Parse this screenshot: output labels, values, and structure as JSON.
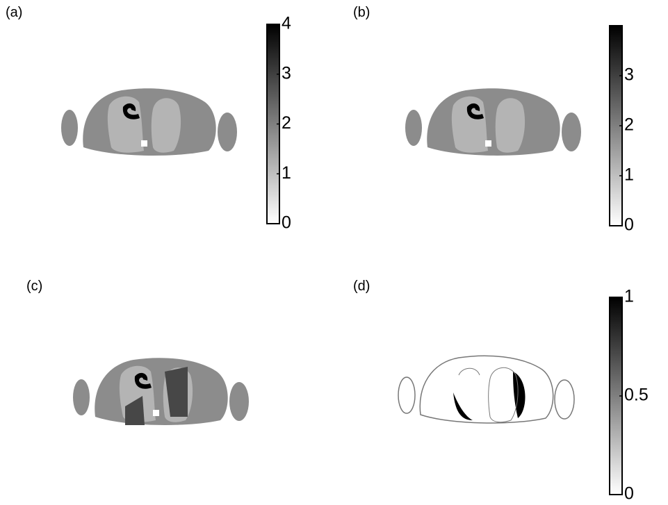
{
  "panels": [
    {
      "label": "(a)",
      "colorbar": {
        "lim": [
          0,
          4
        ],
        "ticks": [
          0,
          1,
          2,
          3,
          4
        ]
      }
    },
    {
      "label": "(b)",
      "colorbar": {
        "lim": [
          0,
          4
        ],
        "ticks": [
          0,
          1,
          2,
          3
        ]
      }
    },
    {
      "label": "(c)"
    },
    {
      "label": "(d)",
      "colorbar": {
        "lim": [
          0,
          1
        ],
        "ticks": [
          0,
          0.5,
          1
        ]
      }
    }
  ]
}
